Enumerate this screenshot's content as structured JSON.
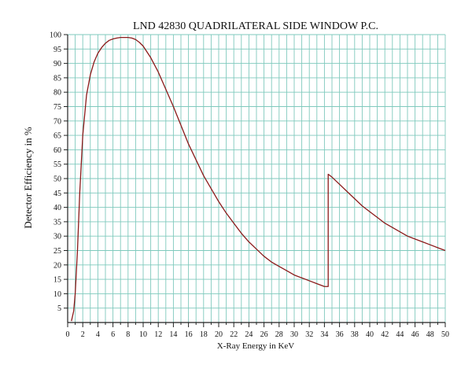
{
  "chart_data": {
    "type": "line",
    "title": "LND 42830 QUADRILATERAL SIDE WINDOW P.C.",
    "xlabel": "X-Ray Energy in KeV",
    "ylabel": "Detector Efficiency in %",
    "xlim": [
      0,
      50
    ],
    "ylim": [
      0,
      100
    ],
    "x_ticks": [
      0,
      2,
      4,
      6,
      8,
      10,
      12,
      14,
      16,
      18,
      20,
      22,
      24,
      26,
      28,
      30,
      32,
      34,
      36,
      38,
      40,
      42,
      44,
      46,
      48,
      50
    ],
    "y_ticks": [
      5,
      10,
      15,
      20,
      25,
      30,
      35,
      40,
      45,
      50,
      55,
      60,
      65,
      70,
      75,
      80,
      85,
      90,
      95,
      100
    ],
    "grid": true,
    "grid_color": "#7fc9bd",
    "axis_color": "#222222",
    "series": [
      {
        "color": "#8b1a1a",
        "x": [
          0.5,
          0.8,
          1.0,
          1.3,
          1.6,
          2.0,
          2.5,
          3.0,
          3.5,
          4.0,
          4.5,
          5.0,
          5.5,
          6.0,
          6.5,
          7.0,
          7.5,
          8.0,
          8.5,
          9.0,
          9.5,
          10.0,
          11.0,
          12.0,
          13.0,
          14.0,
          15.0,
          16.0,
          17.0,
          18.0,
          19.0,
          20.0,
          21.0,
          22.0,
          23.0,
          24.0,
          25.0,
          26.0,
          27.0,
          28.0,
          29.0,
          30.0,
          31.0,
          32.0,
          33.0,
          34.0,
          34.5,
          34.5,
          35.0,
          36.0,
          37.0,
          38.0,
          39.0,
          40.0,
          41.0,
          42.0,
          43.0,
          44.0,
          45.0,
          46.0,
          47.0,
          48.0,
          49.0,
          50.0
        ],
        "y": [
          0.5,
          4,
          10,
          25,
          45,
          65,
          79,
          86,
          90.5,
          93.5,
          95.5,
          97,
          98,
          98.5,
          98.8,
          99,
          99,
          99,
          98.8,
          98.3,
          97.3,
          96,
          92,
          87,
          81,
          75,
          68.5,
          62,
          56.5,
          51,
          46.5,
          42,
          38,
          34.5,
          31,
          28,
          25.5,
          23,
          21,
          19.5,
          18,
          16.5,
          15.5,
          14.5,
          13.5,
          12.5,
          12.5,
          51.5,
          50.5,
          48,
          45.5,
          43,
          40.5,
          38.5,
          36.5,
          34.5,
          33,
          31.5,
          30,
          29,
          28,
          27,
          26,
          25
        ]
      }
    ]
  }
}
